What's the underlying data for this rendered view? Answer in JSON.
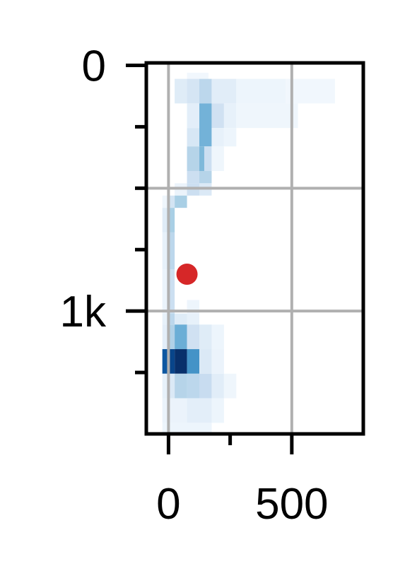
{
  "chart_data": {
    "type": "heatmap",
    "title": "",
    "xlabel": "",
    "ylabel": "",
    "xlim": [
      -90,
      790
    ],
    "ylim": [
      1500,
      -10
    ],
    "y_inverted": true,
    "grid": true,
    "x_ticks": [
      {
        "value": 0,
        "label": "0"
      },
      {
        "value": 250,
        "label": ""
      },
      {
        "value": 500,
        "label": "500"
      }
    ],
    "y_ticks": [
      {
        "value": 0,
        "label": "0"
      },
      {
        "value": 250,
        "label": ""
      },
      {
        "value": 500,
        "label": ""
      },
      {
        "value": 750,
        "label": ""
      },
      {
        "value": 1000,
        "label": "1k"
      },
      {
        "value": 1250,
        "label": ""
      }
    ],
    "y_gridlines": [
      500,
      1000
    ],
    "x_gridlines": [
      0,
      500
    ],
    "colormap": [
      "#f7fbff",
      "#deebf7",
      "#c6dbef",
      "#9ecae1",
      "#6baed6",
      "#4292c6",
      "#2171b5",
      "#08519c",
      "#08306b"
    ],
    "cells": [
      {
        "x0": 75,
        "x1": 162,
        "y0": 30,
        "y1": 55,
        "v": 0.03
      },
      {
        "x0": 25,
        "x1": 75,
        "y0": 55,
        "y1": 155,
        "v": 0.12
      },
      {
        "x0": 75,
        "x1": 125,
        "y0": 55,
        "y1": 155,
        "v": 0.17
      },
      {
        "x0": 125,
        "x1": 175,
        "y0": 55,
        "y1": 155,
        "v": 0.28
      },
      {
        "x0": 175,
        "x1": 275,
        "y0": 55,
        "y1": 155,
        "v": 0.11
      },
      {
        "x0": 275,
        "x1": 475,
        "y0": 55,
        "y1": 155,
        "v": 0.05
      },
      {
        "x0": 475,
        "x1": 675,
        "y0": 55,
        "y1": 155,
        "v": 0.03
      },
      {
        "x0": 75,
        "x1": 125,
        "y0": 155,
        "y1": 255,
        "v": 0.1
      },
      {
        "x0": 75,
        "x1": 125,
        "y0": 255,
        "y1": 330,
        "v": 0.16
      },
      {
        "x0": 125,
        "x1": 175,
        "y0": 155,
        "y1": 330,
        "v": 0.48
      },
      {
        "x0": 175,
        "x1": 225,
        "y0": 155,
        "y1": 255,
        "v": 0.2
      },
      {
        "x0": 225,
        "x1": 275,
        "y0": 155,
        "y1": 255,
        "v": 0.08
      },
      {
        "x0": 275,
        "x1": 525,
        "y0": 155,
        "y1": 255,
        "v": 0.04
      },
      {
        "x0": 175,
        "x1": 225,
        "y0": 255,
        "y1": 330,
        "v": 0.08
      },
      {
        "x0": 225,
        "x1": 275,
        "y0": 255,
        "y1": 330,
        "v": 0.05
      },
      {
        "x0": 75,
        "x1": 125,
        "y0": 330,
        "y1": 430,
        "v": 0.3
      },
      {
        "x0": 125,
        "x1": 145,
        "y0": 330,
        "y1": 430,
        "v": 0.45
      },
      {
        "x0": 145,
        "x1": 175,
        "y0": 330,
        "y1": 430,
        "v": 0.22
      },
      {
        "x0": 175,
        "x1": 225,
        "y0": 330,
        "y1": 430,
        "v": 0.04
      },
      {
        "x0": 75,
        "x1": 125,
        "y0": 430,
        "y1": 480,
        "v": 0.22
      },
      {
        "x0": 125,
        "x1": 175,
        "y0": 430,
        "y1": 480,
        "v": 0.3
      },
      {
        "x0": 25,
        "x1": 75,
        "y0": 480,
        "y1": 530,
        "v": 0.06
      },
      {
        "x0": 75,
        "x1": 125,
        "y0": 480,
        "y1": 530,
        "v": 0.22
      },
      {
        "x0": 125,
        "x1": 175,
        "y0": 480,
        "y1": 530,
        "v": 0.14
      },
      {
        "x0": -25,
        "x1": -5,
        "y0": 530,
        "y1": 580,
        "v": 0.04
      },
      {
        "x0": -5,
        "x1": 25,
        "y0": 530,
        "y1": 580,
        "v": 0.18
      },
      {
        "x0": 25,
        "x1": 75,
        "y0": 530,
        "y1": 580,
        "v": 0.34
      },
      {
        "x0": 75,
        "x1": 75,
        "y0": 530,
        "y1": 580,
        "v": 0.0
      },
      {
        "x0": -25,
        "x1": -5,
        "y0": 580,
        "y1": 680,
        "v": 0.12
      },
      {
        "x0": -5,
        "x1": 25,
        "y0": 580,
        "y1": 680,
        "v": 0.34
      },
      {
        "x0": -25,
        "x1": -5,
        "y0": 680,
        "y1": 830,
        "v": 0.08
      },
      {
        "x0": -5,
        "x1": 25,
        "y0": 680,
        "y1": 830,
        "v": 0.28
      },
      {
        "x0": -25,
        "x1": -5,
        "y0": 830,
        "y1": 1010,
        "v": 0.06
      },
      {
        "x0": -5,
        "x1": 25,
        "y0": 830,
        "y1": 1010,
        "v": 0.22
      },
      {
        "x0": 75,
        "x1": 125,
        "y0": 955,
        "y1": 1010,
        "v": 0.05
      },
      {
        "x0": -25,
        "x1": -5,
        "y0": 1010,
        "y1": 1055,
        "v": 0.08
      },
      {
        "x0": -5,
        "x1": 25,
        "y0": 1010,
        "y1": 1055,
        "v": 0.28
      },
      {
        "x0": 25,
        "x1": 75,
        "y0": 1010,
        "y1": 1055,
        "v": 0.12
      },
      {
        "x0": 75,
        "x1": 125,
        "y0": 1010,
        "y1": 1055,
        "v": 0.08
      },
      {
        "x0": -25,
        "x1": -5,
        "y0": 1055,
        "y1": 1155,
        "v": 0.1
      },
      {
        "x0": -5,
        "x1": 25,
        "y0": 1055,
        "y1": 1155,
        "v": 0.32
      },
      {
        "x0": 25,
        "x1": 75,
        "y0": 1055,
        "y1": 1155,
        "v": 0.5
      },
      {
        "x0": 75,
        "x1": 125,
        "y0": 1055,
        "y1": 1155,
        "v": 0.2
      },
      {
        "x0": 125,
        "x1": 175,
        "y0": 1055,
        "y1": 1155,
        "v": 0.12
      },
      {
        "x0": 175,
        "x1": 225,
        "y0": 1055,
        "y1": 1155,
        "v": 0.05
      },
      {
        "x0": -25,
        "x1": -5,
        "y0": 1155,
        "y1": 1255,
        "v": 0.85
      },
      {
        "x0": -5,
        "x1": 25,
        "y0": 1155,
        "y1": 1255,
        "v": 0.92
      },
      {
        "x0": 25,
        "x1": 75,
        "y0": 1155,
        "y1": 1255,
        "v": 1.0
      },
      {
        "x0": 75,
        "x1": 125,
        "y0": 1155,
        "y1": 1255,
        "v": 0.62
      },
      {
        "x0": 125,
        "x1": 175,
        "y0": 1155,
        "y1": 1255,
        "v": 0.14
      },
      {
        "x0": 175,
        "x1": 225,
        "y0": 1155,
        "y1": 1255,
        "v": 0.06
      },
      {
        "x0": -25,
        "x1": -5,
        "y0": 1255,
        "y1": 1355,
        "v": 0.08
      },
      {
        "x0": -5,
        "x1": 25,
        "y0": 1255,
        "y1": 1355,
        "v": 0.14
      },
      {
        "x0": 25,
        "x1": 75,
        "y0": 1255,
        "y1": 1355,
        "v": 0.3
      },
      {
        "x0": 75,
        "x1": 125,
        "y0": 1255,
        "y1": 1355,
        "v": 0.28
      },
      {
        "x0": 125,
        "x1": 175,
        "y0": 1255,
        "y1": 1355,
        "v": 0.24
      },
      {
        "x0": 175,
        "x1": 225,
        "y0": 1255,
        "y1": 1355,
        "v": 0.11
      },
      {
        "x0": 225,
        "x1": 275,
        "y0": 1255,
        "y1": 1355,
        "v": 0.04
      },
      {
        "x0": -25,
        "x1": 75,
        "y0": 1355,
        "y1": 1455,
        "v": 0.06
      },
      {
        "x0": 75,
        "x1": 175,
        "y0": 1355,
        "y1": 1455,
        "v": 0.1
      },
      {
        "x0": 175,
        "x1": 225,
        "y0": 1355,
        "y1": 1455,
        "v": 0.05
      },
      {
        "x0": -25,
        "x1": 175,
        "y0": 1455,
        "y1": 1500,
        "v": 0.05
      }
    ],
    "marker": {
      "x": 75,
      "y": 850,
      "color": "#d62728"
    }
  }
}
